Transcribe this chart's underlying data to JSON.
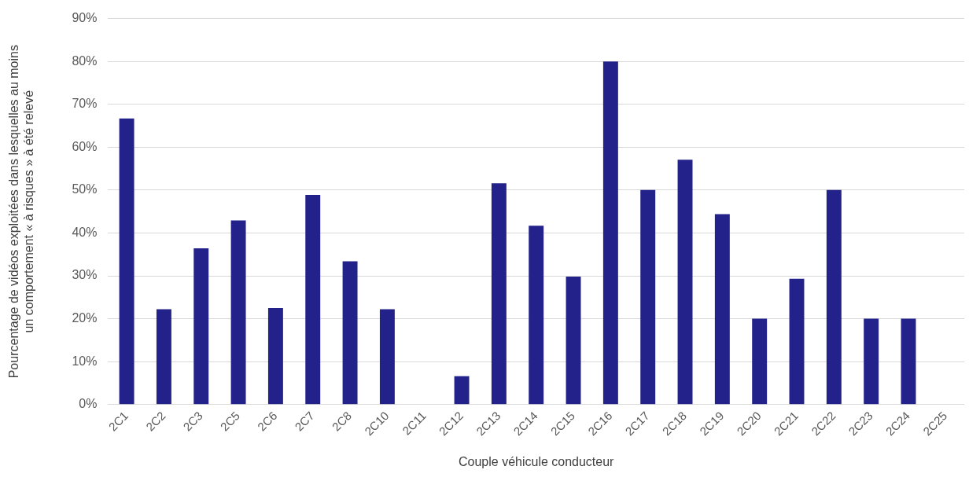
{
  "chart_data": {
    "type": "bar",
    "xlabel": "Couple véhicule conducteur",
    "ylabel": "Pourcentage de vidéos exploitées dans lesquelles au moins un comportement « à risques » à été relevé",
    "categories": [
      "2C1",
      "2C2",
      "2C3",
      "2C5",
      "2C6",
      "2C7",
      "2C8",
      "2C10",
      "2C11",
      "2C12",
      "2C13",
      "2C14",
      "2C15",
      "2C16",
      "2C17",
      "2C18",
      "2C19",
      "2C20",
      "2C21",
      "2C22",
      "2C23",
      "2C24",
      "2C25"
    ],
    "values": [
      66.7,
      22.2,
      36.4,
      42.9,
      22.5,
      48.9,
      33.4,
      22.2,
      0,
      6.6,
      51.6,
      41.7,
      29.8,
      80,
      50,
      57.1,
      44.4,
      20,
      29.3,
      50,
      20,
      20,
      0
    ],
    "color": "#22228a",
    "ylim": [
      0,
      90
    ],
    "yticks": [
      {
        "value": 0,
        "label": "0%"
      },
      {
        "value": 10,
        "label": "10%"
      },
      {
        "value": 20,
        "label": "20%"
      },
      {
        "value": 30,
        "label": "30%"
      },
      {
        "value": 40,
        "label": "40%"
      },
      {
        "value": 50,
        "label": "50%"
      },
      {
        "value": 60,
        "label": "60%"
      },
      {
        "value": 70,
        "label": "70%"
      },
      {
        "value": 80,
        "label": "80%"
      },
      {
        "value": 90,
        "label": "90%"
      }
    ],
    "grid": "y"
  }
}
